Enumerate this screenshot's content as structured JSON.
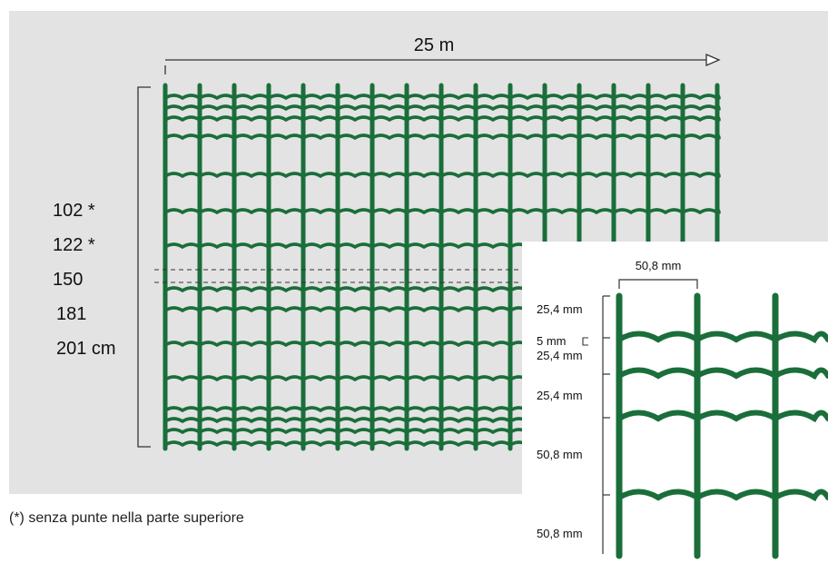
{
  "main": {
    "length_label": "25 m",
    "heights": [
      "102 *",
      "122 *",
      "150",
      "181",
      "201 cm"
    ],
    "footnote": "(*) senza punte nella parte superiore"
  },
  "detail": {
    "spacing_horizontal": "50,8 mm",
    "spacing_labels": [
      "25,4 mm",
      "5 mm",
      "25,4 mm",
      "25,4 mm",
      "50,8 mm",
      "50,8 mm"
    ]
  },
  "colors": {
    "panel_bg": "#e3e3e3",
    "wire": "#1a6e3a",
    "dimension_line": "#333333",
    "detail_bg": "#ffffff"
  }
}
